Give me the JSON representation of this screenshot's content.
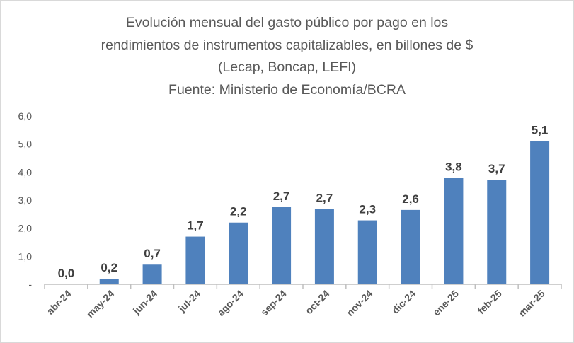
{
  "chart_data": {
    "type": "bar",
    "title_lines": [
      "Evolución mensual del gasto público por pago en los",
      "rendimientos de instrumentos capitalizables, en billones de $",
      "(Lecap, Boncap, LEFI)",
      "Fuente: Ministerio de Economía/BCRA"
    ],
    "categories": [
      "abr-24",
      "may-24",
      "jun-24",
      "jul-24",
      "ago-24",
      "sep-24",
      "oct-24",
      "nov-24",
      "dic-24",
      "ene-25",
      "feb-25",
      "mar-25"
    ],
    "values": [
      0.0,
      0.2,
      0.7,
      1.7,
      2.2,
      2.75,
      2.68,
      2.28,
      2.65,
      3.8,
      3.73,
      5.1
    ],
    "data_labels": [
      "0,0",
      "0,2",
      "0,7",
      "1,7",
      "2,2",
      "2,7",
      "2,7",
      "2,3",
      "2,6",
      "3,8",
      "3,7",
      "5,1"
    ],
    "yticks": [
      "-",
      "1,0",
      "2,0",
      "3,0",
      "4,0",
      "5,0",
      "6,0"
    ],
    "ylim": [
      0,
      6
    ],
    "xlabel": "",
    "ylabel": "",
    "grid": false,
    "bar_color": "#4F81BD"
  }
}
